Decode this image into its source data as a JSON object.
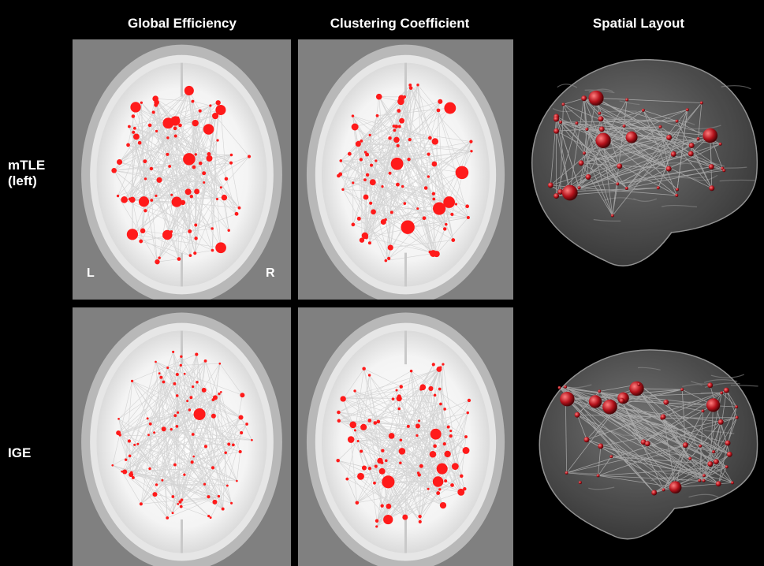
{
  "columns": [
    {
      "title": "Global Efficiency"
    },
    {
      "title": "Clustering Coefficient"
    },
    {
      "title": "Spatial Layout"
    }
  ],
  "rows": [
    {
      "label_line1": "mTLE",
      "label_line2": "(left)"
    },
    {
      "label_line1": "IGE",
      "label_line2": ""
    }
  ],
  "orientation": {
    "left": "L",
    "right": "R"
  },
  "colors": {
    "background": "#000000",
    "node": "#ff1a1a",
    "node3d": "#b3121b",
    "edge": "#c8c8c8",
    "panel_bg": "#808080"
  }
}
